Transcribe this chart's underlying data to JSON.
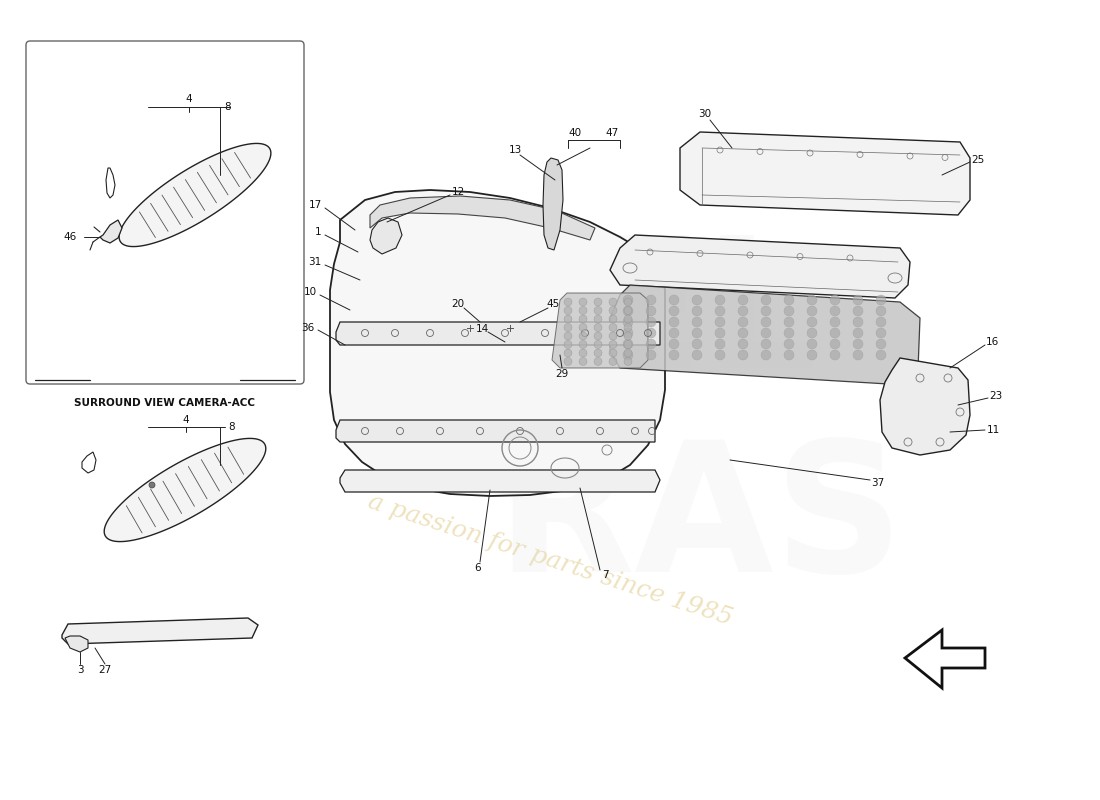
{
  "background_color": "#ffffff",
  "fig_width": 11.0,
  "fig_height": 8.0,
  "dpi": 100,
  "line_color": "#222222",
  "lw_main": 1.1,
  "lw_thin": 0.65,
  "label_fontsize": 7.5,
  "watermark_text": "a passion for parts since 1985",
  "watermark_color": "#c8a028",
  "watermark_alpha": 0.3,
  "box_label": "SURROUND VIEW CAMERA-ACC",
  "arrow_direction": "left"
}
